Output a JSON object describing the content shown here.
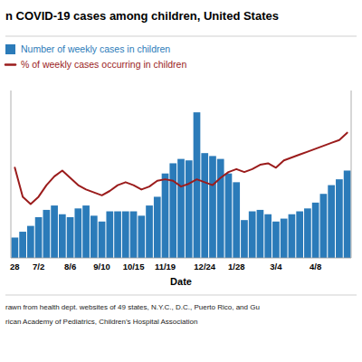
{
  "chart_data": {
    "type": "bar",
    "title": "n COVID-19 cases among children, United States",
    "x_label": "Date",
    "annotations": [
      "rawn from health dept. websites of 49 states, N.Y.C., D.C., Puerto Rico, and Gu",
      "rican Academy of Pediatrics, Children’s Hospital Association"
    ],
    "categories": [
      "28",
      null,
      null,
      "7/2",
      null,
      null,
      null,
      "8/6",
      null,
      null,
      null,
      "9/10",
      null,
      null,
      null,
      "10/15",
      null,
      null,
      null,
      "11/19",
      null,
      null,
      null,
      null,
      "12/24",
      null,
      null,
      null,
      "1/28",
      null,
      null,
      null,
      null,
      "3/4",
      null,
      null,
      null,
      null,
      "4/8",
      null,
      null,
      null,
      null
    ],
    "series": [
      {
        "name": "Number of weekly cases in children",
        "type": "bar",
        "color": "#2B7BB9",
        "values": [
          14,
          18,
          22,
          28,
          33,
          36,
          30,
          28,
          34,
          36,
          29,
          25,
          32,
          32,
          32,
          32,
          29,
          36,
          42,
          58,
          65,
          68,
          67,
          100,
          72,
          70,
          68,
          58,
          52,
          26,
          32,
          33,
          30,
          25,
          27,
          30,
          32,
          34,
          38,
          44,
          50,
          54,
          60
        ]
      },
      {
        "name": "% of weekly cases occurring in children",
        "type": "line",
        "axis": "y2",
        "color": "#9B1C1C",
        "values": [
          62,
          42,
          37,
          42,
          50,
          56,
          60,
          55,
          50,
          47,
          45,
          43,
          46,
          50,
          52,
          50,
          47,
          49,
          53,
          54,
          53,
          49,
          51,
          54,
          52,
          50,
          55,
          59,
          61,
          59,
          61,
          64,
          65,
          62,
          67,
          69,
          71,
          73,
          75,
          77,
          79,
          81,
          86
        ]
      }
    ],
    "ylim": [
      0,
      115
    ],
    "y2lim": [
      0,
      115
    ],
    "grid": false,
    "legend": "upper left",
    "tick_labels": "x"
  }
}
